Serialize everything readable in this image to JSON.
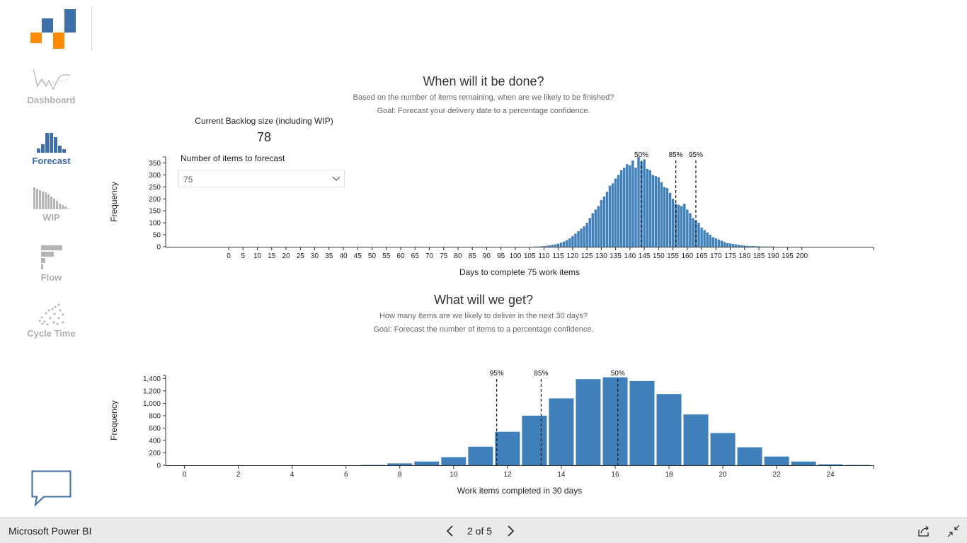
{
  "app": {
    "name": "Microsoft Power BI"
  },
  "pager": {
    "text": "2 of 5"
  },
  "nav": {
    "dashboard": "Dashboard",
    "forecast": "Forecast",
    "wip": "WIP",
    "flow": "Flow",
    "cycle_time": "Cycle Time"
  },
  "colors": {
    "accent": "#3e6fa8",
    "bar": "#3f80bb",
    "logo_orange": "#ff8c00",
    "logo_blue": "#3e6fa8",
    "inactive": "#b0b0b0"
  },
  "section1": {
    "title": "When will it be done?",
    "subtitle": "Based on the number of items remaining, when are we likely to be finished?",
    "goal": "Goal: Forecast your delivery date to a percentage confidence."
  },
  "backlog": {
    "label": "Current Backlog size (including WIP)",
    "value": "78"
  },
  "forecast_input": {
    "label": "Number of items to forecast",
    "value": "75"
  },
  "section2": {
    "title": "What will we get?",
    "subtitle": "How many items are we likely to deliver in the next 30 days?",
    "goal": "Goal: Forecast the number of items to a percentage confidence."
  },
  "chart_data": [
    {
      "type": "bar",
      "xlabel": "Days to complete 75 work items",
      "ylabel": "Frequency",
      "xlim": [
        -22,
        225
      ],
      "ylim": [
        0,
        375
      ],
      "xticks": [
        0,
        5,
        10,
        15,
        20,
        25,
        30,
        35,
        40,
        45,
        50,
        55,
        60,
        65,
        70,
        75,
        80,
        85,
        90,
        95,
        100,
        105,
        110,
        115,
        120,
        125,
        130,
        135,
        140,
        145,
        150,
        155,
        160,
        165,
        170,
        175,
        180,
        185,
        190,
        195,
        200
      ],
      "yticks": [
        0,
        50,
        100,
        150,
        200,
        250,
        300,
        350
      ],
      "x": [
        107,
        108,
        109,
        110,
        111,
        112,
        113,
        114,
        115,
        116,
        117,
        118,
        119,
        120,
        121,
        122,
        123,
        124,
        125,
        126,
        127,
        128,
        129,
        130,
        131,
        132,
        133,
        134,
        135,
        136,
        137,
        138,
        139,
        140,
        141,
        142,
        143,
        144,
        145,
        146,
        147,
        148,
        149,
        150,
        151,
        152,
        153,
        154,
        155,
        156,
        157,
        158,
        159,
        160,
        161,
        162,
        163,
        164,
        165,
        166,
        167,
        168,
        169,
        170,
        171,
        172,
        173,
        174,
        175,
        176,
        177,
        178,
        179,
        180,
        181,
        182,
        183,
        184,
        185,
        186,
        187,
        188,
        189,
        190
      ],
      "values": [
        1,
        1,
        2,
        3,
        4,
        6,
        8,
        10,
        13,
        17,
        22,
        28,
        35,
        45,
        55,
        65,
        75,
        85,
        100,
        120,
        140,
        155,
        170,
        195,
        210,
        230,
        255,
        265,
        285,
        300,
        320,
        330,
        345,
        340,
        360,
        330,
        375,
        355,
        365,
        325,
        320,
        300,
        295,
        290,
        270,
        250,
        245,
        225,
        200,
        180,
        175,
        170,
        180,
        155,
        140,
        120,
        110,
        100,
        80,
        70,
        60,
        50,
        40,
        35,
        30,
        25,
        20,
        15,
        14,
        12,
        10,
        8,
        6,
        5,
        4,
        3,
        3,
        2,
        2,
        1,
        1,
        1,
        1,
        1
      ],
      "percentiles": [
        {
          "label": "50%",
          "x": 144
        },
        {
          "label": "85%",
          "x": 156
        },
        {
          "label": "95%",
          "x": 163
        }
      ]
    },
    {
      "type": "bar",
      "xlabel": "Work items completed in 30 days",
      "ylabel": "Frequency",
      "xlim": [
        -0.7,
        25.6
      ],
      "ylim": [
        0,
        1450
      ],
      "xticks": [
        0,
        2,
        4,
        6,
        8,
        10,
        12,
        14,
        16,
        18,
        20,
        22,
        24
      ],
      "yticks": [
        0,
        200,
        400,
        600,
        800,
        1000,
        1200,
        1400
      ],
      "ytick_labels": [
        "0",
        "200",
        "400",
        "600",
        "800",
        "1,000",
        "1,200",
        "1,400"
      ],
      "x": [
        7,
        8,
        9,
        10,
        11,
        12,
        13,
        14,
        15,
        16,
        17,
        18,
        19,
        20,
        21,
        22,
        23,
        24,
        25
      ],
      "values": [
        5,
        30,
        60,
        130,
        300,
        540,
        800,
        1080,
        1390,
        1420,
        1360,
        1150,
        820,
        520,
        290,
        140,
        60,
        15,
        5
      ],
      "percentiles": [
        {
          "label": "95%",
          "x": 11.6
        },
        {
          "label": "85%",
          "x": 13.25
        },
        {
          "label": "50%",
          "x": 16.1
        }
      ]
    }
  ]
}
